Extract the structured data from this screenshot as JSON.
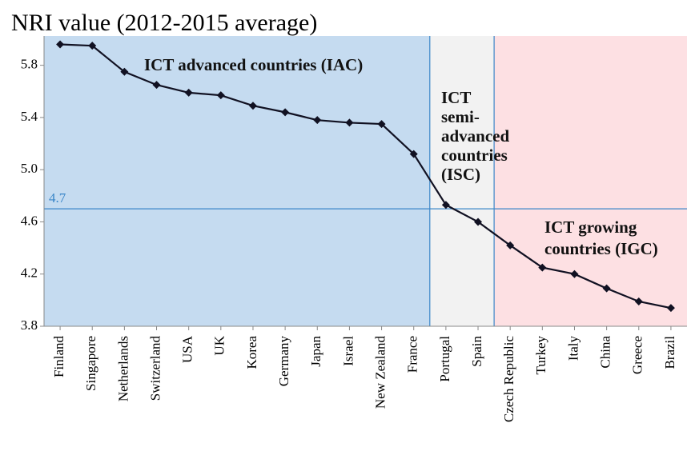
{
  "chart_data": {
    "type": "line",
    "title": "NRI value (2012-2015 average)",
    "categories": [
      "Finland",
      "Singapore",
      "Netherlands",
      "Switzerland",
      "USA",
      "UK",
      "Korea",
      "Germany",
      "Japan",
      "Israel",
      "New Zealand",
      "France",
      "Portugal",
      "Spain",
      "Czech Republic",
      "Turkey",
      "Italy",
      "China",
      "Greece",
      "Brazil"
    ],
    "values": [
      5.96,
      5.95,
      5.75,
      5.65,
      5.59,
      5.57,
      5.49,
      5.44,
      5.38,
      5.36,
      5.35,
      5.12,
      4.73,
      4.6,
      4.42,
      4.25,
      4.2,
      4.09,
      3.99,
      3.94
    ],
    "color": "#111122",
    "ylim": [
      3.8,
      6.0
    ],
    "yticks": [
      {
        "value": 3.8,
        "label": "3.8"
      },
      4.2,
      4.6,
      {
        "value": 5.0,
        "label": "5.0"
      },
      5.4,
      5.8
    ],
    "threshold": {
      "value": 4.7,
      "label": "4.7",
      "color": "#3a86c8"
    },
    "regions": [
      {
        "lines": [
          "ICT advanced countries (IAC)"
        ],
        "start": "Finland",
        "end": "France",
        "color": "#c5dbf0"
      },
      {
        "lines": [
          "ICT",
          "semi-",
          "advanced",
          "countries",
          "(ISC)"
        ],
        "start": "Portugal",
        "end": "Spain",
        "color": "#f2f2f2"
      },
      {
        "lines": [
          "ICT growing",
          "countries (IGC)"
        ],
        "start": "Czech Republic",
        "end": "Brazil",
        "color": "#fde0e3"
      }
    ]
  }
}
